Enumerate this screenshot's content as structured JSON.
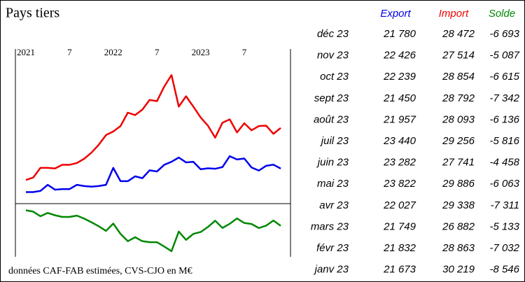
{
  "chart_data": {
    "type": "line",
    "x": [
      "2021-01",
      "2021-02",
      "2021-03",
      "2021-04",
      "2021-05",
      "2021-06",
      "2021-07",
      "2021-08",
      "2021-09",
      "2021-10",
      "2021-11",
      "2021-12",
      "2022-01",
      "2022-02",
      "2022-03",
      "2022-04",
      "2022-05",
      "2022-06",
      "2022-07",
      "2022-08",
      "2022-09",
      "2022-10",
      "2022-11",
      "2022-12",
      "2023-01",
      "2023-02",
      "2023-03",
      "2023-04",
      "2023-05",
      "2023-06",
      "2023-07",
      "2023-08",
      "2023-09",
      "2023-10",
      "2023-11",
      "2023-12"
    ],
    "xticks": [
      {
        "value": "2021-01",
        "label": "2021"
      },
      {
        "value": "2021-07",
        "label": "7"
      },
      {
        "value": "2022-01",
        "label": "2022"
      },
      {
        "value": "2022-07",
        "label": "7"
      },
      {
        "value": "2023-01",
        "label": "2023"
      },
      {
        "value": "2023-07",
        "label": "7"
      }
    ],
    "ylim": [
      16000,
      41500
    ],
    "y2lim": [
      -16000,
      0
    ],
    "series": [
      {
        "name": "Export",
        "color": "#0000ee",
        "values": [
          17900,
          17900,
          18100,
          19100,
          18300,
          18400,
          18400,
          19100,
          18900,
          18800,
          18900,
          19100,
          21900,
          19700,
          19700,
          20500,
          20200,
          21500,
          21300,
          22400,
          22900,
          23600,
          22800,
          22900,
          21673,
          21832,
          21749,
          22027,
          23822,
          23282,
          23440,
          21957,
          21450,
          22239,
          22426,
          21780
        ]
      },
      {
        "name": "Import",
        "color": "#ee0000",
        "values": [
          19900,
          20300,
          21900,
          21900,
          21800,
          22400,
          22400,
          22700,
          23400,
          24400,
          25700,
          27300,
          27900,
          28800,
          31000,
          30600,
          31500,
          33100,
          32900,
          35300,
          37200,
          32000,
          33700,
          32000,
          30219,
          28863,
          26882,
          29338,
          29886,
          27741,
          29256,
          28093,
          28792,
          28854,
          27514,
          28472
        ]
      },
      {
        "name": "Solde",
        "color": "#008800",
        "axis": "y2",
        "values": [
          -2000,
          -2400,
          -3800,
          -2800,
          -3500,
          -4000,
          -4000,
          -3600,
          -4500,
          -5600,
          -6800,
          -8200,
          -6000,
          -9100,
          -11300,
          -10100,
          -11300,
          -11600,
          -11600,
          -12900,
          -14300,
          -8400,
          -10900,
          -9100,
          -8546,
          -7032,
          -5133,
          -7311,
          -6063,
          -4458,
          -5816,
          -6136,
          -7342,
          -6615,
          -5087,
          -6693
        ]
      }
    ]
  },
  "header": {
    "title": "Pays tiers",
    "note": "données CAF-FAB estimées, CVS-CJO en M€"
  },
  "table": {
    "columns": [
      "Export",
      "Import",
      "Solde"
    ],
    "rows": [
      [
        "déc 23",
        "21 780",
        "28 472",
        "-6 693"
      ],
      [
        "nov 23",
        "22 426",
        "27 514",
        "-5 087"
      ],
      [
        "oct 23",
        "22 239",
        "28 854",
        "-6 615"
      ],
      [
        "sept 23",
        "21 450",
        "28 792",
        "-7 342"
      ],
      [
        "août 23",
        "21 957",
        "28 093",
        "-6 136"
      ],
      [
        "juil 23",
        "23 440",
        "29 256",
        "-5 816"
      ],
      [
        "juin 23",
        "23 282",
        "27 741",
        "-4 458"
      ],
      [
        "mai 23",
        "23 822",
        "29 886",
        "-6 063"
      ],
      [
        "avr 23",
        "22 027",
        "29 338",
        "-7 311"
      ],
      [
        "mars 23",
        "21 749",
        "26 882",
        "-5 133"
      ],
      [
        "févr 23",
        "21 832",
        "28 863",
        "-7 032"
      ],
      [
        "janv 23",
        "21 673",
        "30 219",
        "-8 546"
      ]
    ]
  }
}
